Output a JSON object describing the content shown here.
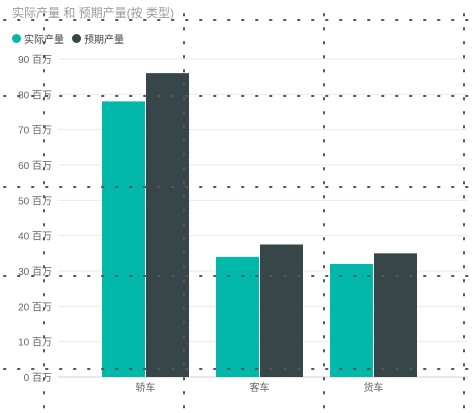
{
  "chart_data": {
    "type": "bar",
    "title": "实际产量 和 预期产量(按 类型)",
    "categories": [
      "轿车",
      "客车",
      "货车"
    ],
    "series": [
      {
        "name": "实际产量",
        "color": "#01b8aa",
        "values": [
          78,
          34,
          32
        ]
      },
      {
        "name": "预期产量",
        "color": "#374649",
        "values": [
          86,
          37.5,
          35
        ]
      }
    ],
    "ylim": [
      0,
      90
    ],
    "y_ticks": [
      {
        "value": 0,
        "label": "0 百万"
      },
      {
        "value": 10,
        "label": "10 百万"
      },
      {
        "value": 20,
        "label": "20 百万"
      },
      {
        "value": 30,
        "label": "30 百万"
      },
      {
        "value": 40,
        "label": "40 百万"
      },
      {
        "value": 50,
        "label": "50 百万"
      },
      {
        "value": 60,
        "label": "60 百万"
      },
      {
        "value": 70,
        "label": "70 百万"
      },
      {
        "value": 80,
        "label": "80 百万"
      },
      {
        "value": 90,
        "label": "90 百万"
      }
    ],
    "grid": true,
    "legend_position": "top-left"
  }
}
